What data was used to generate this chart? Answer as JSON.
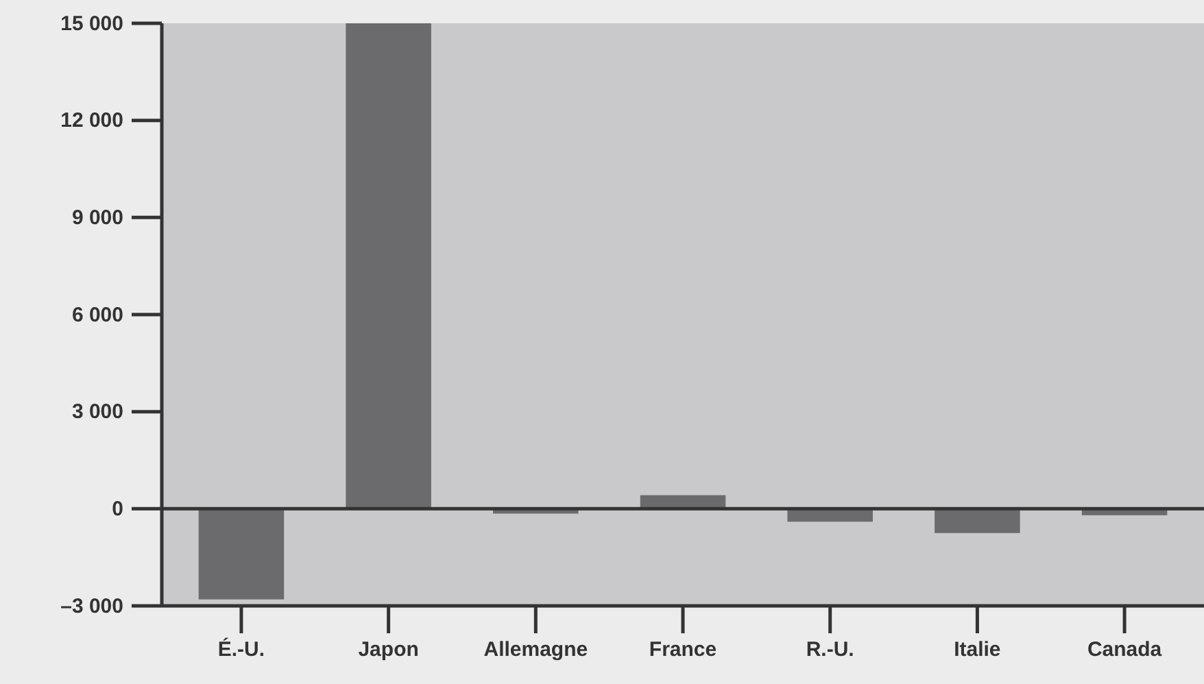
{
  "chart_data": {
    "type": "bar",
    "categories": [
      "É.-U.",
      "Japon",
      "Allemagne",
      "France",
      "R.-U.",
      "Italie",
      "Canada"
    ],
    "values": [
      -2800,
      15000,
      -150,
      420,
      -400,
      -750,
      -200
    ],
    "color": "#6b6b6e",
    "ylim": [
      -3000,
      15000
    ],
    "yticks": [
      {
        "value": -3000,
        "label": "–3 000"
      },
      0,
      {
        "value": 3000,
        "label": "3 000"
      },
      {
        "value": 6000,
        "label": "6 000"
      },
      {
        "value": 9000,
        "label": "9 000"
      },
      {
        "value": 12000,
        "label": "12 000"
      },
      {
        "value": 15000,
        "label": "15 000"
      }
    ]
  }
}
